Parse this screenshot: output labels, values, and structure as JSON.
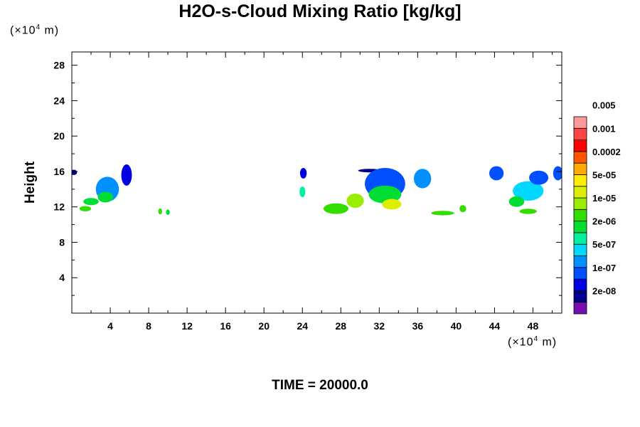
{
  "title": "H2O-s-Cloud Mixing Ratio [kg/kg]",
  "y_unit_prefix": "(×10",
  "unit_exponent": "4",
  "unit_suffix": " m)",
  "time_label": "TIME = 20000.0",
  "chart_data": {
    "type": "heatmap",
    "title": "H2O-s-Cloud Mixing Ratio [kg/kg]",
    "ylabel": "Height",
    "x_unit": "(×10^4 m)",
    "y_unit": "(×10^4 m)",
    "xlim": [
      0,
      51
    ],
    "ylim": [
      0,
      29.5
    ],
    "xticks": [
      4,
      8,
      12,
      16,
      20,
      24,
      28,
      32,
      36,
      40,
      44,
      48
    ],
    "yticks": [
      4,
      8,
      12,
      16,
      20,
      24,
      28
    ],
    "grid": false,
    "colorbar": {
      "position": "right",
      "colors": [
        "#7a0fb0",
        "#00008c",
        "#0000e0",
        "#0050ff",
        "#0090ff",
        "#00d8ff",
        "#00f0a0",
        "#00dd33",
        "#33dd00",
        "#99ee00",
        "#ddee00",
        "#ffee00",
        "#ffaa00",
        "#ff5500",
        "#ff0000",
        "#ff4444",
        "#ff9999"
      ],
      "labels": [
        "2e-08",
        "1e-07",
        "5e-07",
        "2e-06",
        "1e-05",
        "5e-05",
        "0.0002",
        "0.001",
        "0.005"
      ]
    },
    "cloud_regions": [
      {
        "x": 0.2,
        "y": 15.9,
        "rx": 0.35,
        "ry": 0.3,
        "level": 1
      },
      {
        "x": 2.0,
        "y": 12.6,
        "rx": 0.8,
        "ry": 0.4,
        "level": 7
      },
      {
        "x": 1.4,
        "y": 11.8,
        "rx": 0.6,
        "ry": 0.3,
        "level": 8
      },
      {
        "x": 3.7,
        "y": 14.0,
        "rx": 1.2,
        "ry": 1.4,
        "level": 4
      },
      {
        "x": 3.5,
        "y": 13.1,
        "rx": 0.8,
        "ry": 0.6,
        "level": 7
      },
      {
        "x": 5.7,
        "y": 15.6,
        "rx": 0.55,
        "ry": 1.2,
        "level": 2
      },
      {
        "x": 9.2,
        "y": 11.5,
        "rx": 0.2,
        "ry": 0.35,
        "level": 8
      },
      {
        "x": 10.0,
        "y": 11.4,
        "rx": 0.2,
        "ry": 0.3,
        "level": 7
      },
      {
        "x": 24.1,
        "y": 15.8,
        "rx": 0.35,
        "ry": 0.6,
        "level": 2
      },
      {
        "x": 24.0,
        "y": 13.7,
        "rx": 0.3,
        "ry": 0.6,
        "level": 6
      },
      {
        "x": 27.5,
        "y": 11.8,
        "rx": 1.3,
        "ry": 0.6,
        "level": 8
      },
      {
        "x": 29.5,
        "y": 12.7,
        "rx": 0.9,
        "ry": 0.8,
        "level": 9
      },
      {
        "x": 31.0,
        "y": 16.1,
        "rx": 1.2,
        "ry": 0.2,
        "level": 1
      },
      {
        "x": 32.6,
        "y": 14.6,
        "rx": 2.1,
        "ry": 1.8,
        "level": 3
      },
      {
        "x": 32.6,
        "y": 13.4,
        "rx": 1.7,
        "ry": 1.0,
        "level": 7
      },
      {
        "x": 33.3,
        "y": 12.3,
        "rx": 1.0,
        "ry": 0.6,
        "level": 10
      },
      {
        "x": 36.5,
        "y": 15.2,
        "rx": 0.9,
        "ry": 1.1,
        "level": 4
      },
      {
        "x": 38.6,
        "y": 11.3,
        "rx": 1.2,
        "ry": 0.25,
        "level": 8
      },
      {
        "x": 40.7,
        "y": 11.8,
        "rx": 0.35,
        "ry": 0.4,
        "level": 8
      },
      {
        "x": 44.2,
        "y": 15.8,
        "rx": 0.75,
        "ry": 0.8,
        "level": 3
      },
      {
        "x": 47.5,
        "y": 13.8,
        "rx": 1.6,
        "ry": 1.1,
        "level": 5
      },
      {
        "x": 46.3,
        "y": 12.6,
        "rx": 0.8,
        "ry": 0.6,
        "level": 7
      },
      {
        "x": 48.6,
        "y": 15.3,
        "rx": 1.0,
        "ry": 0.8,
        "level": 3
      },
      {
        "x": 50.6,
        "y": 15.8,
        "rx": 0.5,
        "ry": 0.8,
        "level": 3
      },
      {
        "x": 47.5,
        "y": 11.5,
        "rx": 0.9,
        "ry": 0.3,
        "level": 8
      }
    ]
  }
}
